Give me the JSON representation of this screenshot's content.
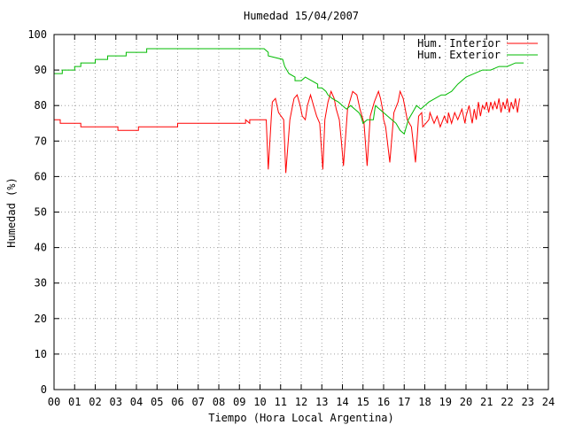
{
  "chart_data": {
    "type": "line",
    "title": "Humedad 15/04/2007",
    "xlabel": "Tiempo (Hora Local Argentina)",
    "ylabel": "Humedad (%)",
    "xlim": [
      0,
      24
    ],
    "ylim": [
      0,
      100
    ],
    "x_ticks": [
      "00",
      "01",
      "02",
      "03",
      "04",
      "05",
      "06",
      "07",
      "08",
      "09",
      "10",
      "11",
      "12",
      "13",
      "14",
      "15",
      "16",
      "17",
      "18",
      "19",
      "20",
      "21",
      "22",
      "23",
      "24"
    ],
    "y_ticks": [
      "0",
      "10",
      "20",
      "30",
      "40",
      "50",
      "60",
      "70",
      "80",
      "90",
      "100"
    ],
    "grid": true,
    "legend_position": "top-right",
    "series": [
      {
        "name": "Hum. Interior",
        "color": "#ff0000",
        "x": [
          0.0,
          0.3,
          0.3,
          1.3,
          1.3,
          3.1,
          3.1,
          4.1,
          4.1,
          6.0,
          6.0,
          9.3,
          9.3,
          9.5,
          9.5,
          10.3,
          10.4,
          10.55,
          10.6,
          10.75,
          10.9,
          11.15,
          11.25,
          11.45,
          11.55,
          11.65,
          11.8,
          11.95,
          12.05,
          12.2,
          12.3,
          12.45,
          12.6,
          12.75,
          12.9,
          13.05,
          13.15,
          13.3,
          13.45,
          13.6,
          13.7,
          13.85,
          13.95,
          14.05,
          14.25,
          14.5,
          14.7,
          14.85,
          14.95,
          15.05,
          15.2,
          15.35,
          15.55,
          15.75,
          15.85,
          15.95,
          16.0,
          16.1,
          16.3,
          16.5,
          16.7,
          16.8,
          16.95,
          17.05,
          17.15,
          17.35,
          17.55,
          17.7,
          17.85,
          17.9,
          18.05,
          18.2,
          18.25,
          18.45,
          18.6,
          18.75,
          18.95,
          19.1,
          19.15,
          19.3,
          19.45,
          19.6,
          19.8,
          19.95,
          20.0,
          20.15,
          20.3,
          20.4,
          20.5,
          20.6,
          20.7,
          20.8,
          20.9,
          21.0,
          21.1,
          21.2,
          21.3,
          21.4,
          21.5,
          21.6,
          21.7,
          21.8,
          21.9,
          22.0,
          22.1,
          22.2,
          22.3,
          22.4,
          22.5,
          22.6
        ],
        "values": [
          76,
          76,
          75,
          75,
          74,
          74,
          73,
          73,
          74,
          74,
          75,
          75,
          76,
          75,
          76,
          76,
          62,
          77,
          81,
          82,
          78,
          76,
          61,
          76,
          79,
          82,
          83,
          80,
          77,
          76,
          80,
          83,
          80,
          77,
          75,
          62,
          76,
          81,
          84,
          82,
          79,
          76,
          70,
          63,
          79,
          84,
          83,
          79,
          77,
          75,
          63,
          77,
          81,
          84,
          82,
          79,
          76,
          74,
          64,
          78,
          81,
          84,
          82,
          79,
          76,
          74,
          64,
          77,
          78,
          74,
          75,
          76,
          78,
          75,
          77,
          74,
          77,
          75,
          78,
          75,
          78,
          76,
          79,
          75,
          77,
          80,
          75,
          79,
          76,
          81,
          77,
          80,
          79,
          81,
          78,
          81,
          79,
          81,
          79,
          82,
          78,
          81,
          79,
          82,
          78,
          81,
          79,
          82,
          78,
          82
        ]
      },
      {
        "name": "Hum. Exterior",
        "color": "#00bb00",
        "x": [
          0.0,
          0.4,
          0.4,
          1.0,
          1.0,
          1.3,
          1.3,
          2.0,
          2.0,
          2.6,
          2.6,
          3.5,
          3.5,
          4.5,
          4.5,
          5.0,
          5.0,
          10.2,
          10.4,
          10.4,
          11.1,
          11.2,
          11.4,
          11.7,
          11.7,
          12.0,
          12.2,
          12.5,
          12.8,
          12.8,
          13.0,
          13.2,
          13.3,
          13.5,
          13.8,
          14.0,
          14.2,
          14.4,
          14.6,
          14.8,
          14.9,
          15.0,
          15.2,
          15.5,
          15.6,
          15.8,
          16.0,
          16.2,
          16.4,
          16.6,
          16.8,
          17.0,
          17.2,
          17.4,
          17.6,
          17.8,
          18.0,
          18.2,
          18.5,
          18.8,
          19.0,
          19.3,
          19.6,
          20.0,
          20.4,
          20.8,
          21.2,
          21.6,
          22.0,
          22.4,
          22.8
        ],
        "values": [
          89,
          89,
          90,
          90,
          91,
          91,
          92,
          92,
          93,
          93,
          94,
          94,
          95,
          95,
          96,
          96,
          96,
          96,
          95,
          94,
          93,
          91,
          89,
          88,
          87,
          87,
          88,
          87,
          86,
          85,
          85,
          84,
          83,
          82,
          81,
          80,
          79,
          80,
          79,
          78,
          77,
          75,
          76,
          76,
          80,
          79,
          78,
          77,
          76,
          75,
          73,
          72,
          76,
          78,
          80,
          79,
          80,
          81,
          82,
          83,
          83,
          84,
          86,
          88,
          89,
          90,
          90,
          91,
          91,
          92,
          92
        ]
      }
    ]
  }
}
